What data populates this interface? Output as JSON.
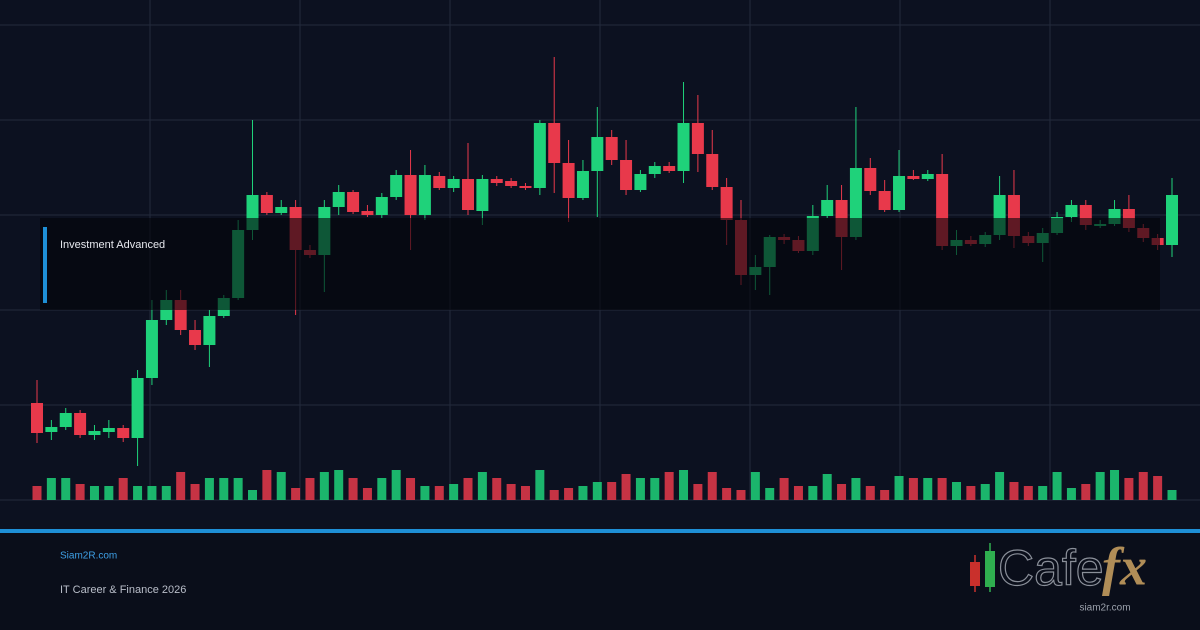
{
  "chart_data": {
    "type": "candlestick",
    "ylim": [
      0,
      475
    ],
    "grid": true,
    "up_color": "#1fd27a",
    "down_color": "#e8394b",
    "open": [
      97,
      68,
      73,
      87,
      65,
      68,
      72,
      62,
      122,
      180,
      200,
      170,
      155,
      184,
      202,
      270,
      305,
      287,
      293,
      250,
      245,
      293,
      308,
      289,
      285,
      303,
      325,
      285,
      324,
      312,
      321,
      289,
      321,
      319,
      314,
      312,
      377,
      337,
      302,
      329,
      363,
      340,
      310,
      326,
      334,
      329,
      377,
      346,
      313,
      280,
      225,
      233,
      263,
      260,
      249,
      284,
      300,
      263,
      332,
      309,
      290,
      324,
      321,
      326,
      254,
      260,
      256,
      265,
      305,
      264,
      257,
      267,
      283,
      295,
      274,
      276,
      291,
      272,
      262,
      255
    ],
    "high": [
      120,
      80,
      92,
      90,
      75,
      80,
      75,
      130,
      200,
      210,
      210,
      180,
      190,
      205,
      280,
      380,
      308,
      300,
      300,
      255,
      300,
      315,
      310,
      295,
      307,
      330,
      350,
      335,
      328,
      324,
      357,
      325,
      324,
      322,
      317,
      380,
      443,
      360,
      340,
      393,
      370,
      360,
      330,
      338,
      338,
      418,
      405,
      370,
      322,
      300,
      245,
      265,
      266,
      264,
      295,
      315,
      315,
      393,
      342,
      320,
      350,
      330,
      330,
      346,
      270,
      264,
      268,
      324,
      330,
      268,
      272,
      288,
      300,
      300,
      280,
      300,
      305,
      276,
      266,
      322
    ],
    "low": [
      57,
      60,
      70,
      62,
      60,
      62,
      58,
      34,
      115,
      175,
      165,
      150,
      133,
      182,
      200,
      260,
      285,
      285,
      185,
      242,
      208,
      285,
      286,
      283,
      282,
      300,
      250,
      280,
      310,
      308,
      285,
      275,
      314,
      312,
      310,
      305,
      307,
      278,
      300,
      283,
      335,
      305,
      308,
      322,
      327,
      317,
      328,
      310,
      255,
      215,
      210,
      205,
      256,
      247,
      245,
      282,
      230,
      260,
      305,
      288,
      288,
      320,
      319,
      250,
      245,
      254,
      253,
      260,
      252,
      254,
      238,
      265,
      278,
      270,
      272,
      274,
      268,
      258,
      250,
      243
    ],
    "close": [
      67,
      73,
      87,
      65,
      69,
      72,
      62,
      122,
      180,
      200,
      170,
      155,
      184,
      202,
      270,
      305,
      287,
      293,
      250,
      245,
      293,
      308,
      288,
      285,
      303,
      325,
      285,
      325,
      312,
      321,
      290,
      321,
      317,
      314,
      312,
      377,
      337,
      302,
      329,
      363,
      340,
      310,
      326,
      334,
      329,
      377,
      346,
      313,
      280,
      225,
      233,
      263,
      260,
      249,
      284,
      300,
      263,
      332,
      309,
      290,
      324,
      321,
      326,
      254,
      260,
      256,
      265,
      305,
      264,
      257,
      267,
      283,
      295,
      275,
      276,
      291,
      272,
      262,
      255,
      305
    ],
    "volume": [
      14,
      22,
      22,
      16,
      14,
      14,
      22,
      14,
      14,
      14,
      28,
      16,
      22,
      22,
      22,
      10,
      30,
      28,
      12,
      22,
      28,
      30,
      22,
      12,
      22,
      30,
      22,
      14,
      14,
      16,
      22,
      28,
      22,
      16,
      14,
      30,
      10,
      12,
      14,
      18,
      18,
      26,
      22,
      22,
      28,
      30,
      16,
      28,
      12,
      10,
      28,
      12,
      22,
      14,
      14,
      26,
      16,
      22,
      14,
      10,
      24,
      22,
      22,
      22,
      18,
      14,
      16,
      28,
      18,
      14,
      14,
      28,
      12,
      16,
      28,
      30,
      22,
      28,
      24,
      10
    ]
  },
  "overlay": {
    "label": "Investment Advanced"
  },
  "footer": {
    "site": "Siam2R.com",
    "line": "IT Career & Finance 2026"
  },
  "logo": {
    "word": "Cafe",
    "accent": "fx",
    "url": "siam2r.com"
  }
}
